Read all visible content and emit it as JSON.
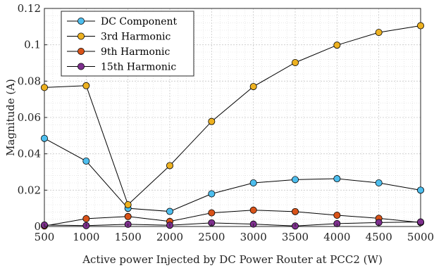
{
  "chart_data": {
    "type": "line",
    "xlabel": "Active power Injected by DC Power Router at PCC2 (W)",
    "ylabel": "Magnitude (A)",
    "x": [
      500,
      1000,
      1500,
      2000,
      2500,
      3000,
      3500,
      4000,
      4500,
      5000
    ],
    "xlim": [
      500,
      5000
    ],
    "ylim": [
      0,
      0.12
    ],
    "xticks": [
      "500",
      "1000",
      "1500",
      "2000",
      "2500",
      "3000",
      "3500",
      "4000",
      "4500",
      "5000"
    ],
    "yticks": [
      "0",
      "0.02",
      "0.04",
      "0.06",
      "0.08",
      "0.1",
      "0.12"
    ],
    "ytick_values": [
      0,
      0.02,
      0.04,
      0.06,
      0.08,
      0.1,
      0.12
    ],
    "grid": true,
    "minor_grid": true,
    "legend_position": "top-left",
    "series": [
      {
        "name": "DC Component",
        "color": "#0072BD",
        "marker": "#4DBEEE",
        "values": [
          0.0485,
          0.036,
          0.01,
          0.0083,
          0.018,
          0.024,
          0.0258,
          0.0263,
          0.024,
          0.02
        ]
      },
      {
        "name": "3rd Harmonic",
        "color": "#D95319",
        "marker": "#EDB120",
        "values": [
          0.0765,
          0.0775,
          0.012,
          0.0335,
          0.0578,
          0.077,
          0.0902,
          0.0998,
          0.1068,
          0.1105
        ]
      },
      {
        "name": "9th Harmonic",
        "color": "#A2142F",
        "marker": "#D95319",
        "values": [
          0.0003,
          0.0043,
          0.0055,
          0.0028,
          0.0075,
          0.009,
          0.0082,
          0.0062,
          0.0045,
          0.0022
        ]
      },
      {
        "name": "15th Harmonic",
        "color": "#7E2F8E",
        "marker": "#7E2F8E",
        "values": [
          0.0008,
          0.0005,
          0.0012,
          0.0007,
          0.002,
          0.0013,
          0.0003,
          0.0016,
          0.0022,
          0.0025
        ]
      }
    ]
  }
}
